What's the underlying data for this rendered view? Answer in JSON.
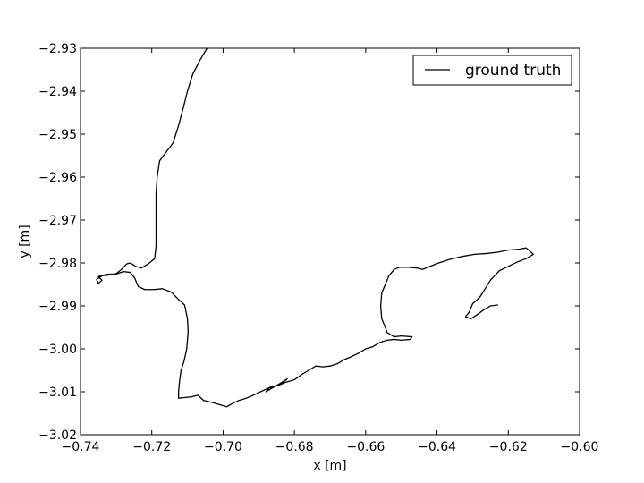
{
  "chart_data": {
    "type": "line",
    "title": "",
    "xlabel": "x [m]",
    "ylabel": "y [m]",
    "xlim": [
      -0.74,
      -0.6
    ],
    "ylim": [
      -3.02,
      -2.93
    ],
    "grid": false,
    "legend_position": "top-right",
    "xticks": [
      -0.74,
      -0.72,
      -0.7,
      -0.68,
      -0.66,
      -0.64,
      -0.62,
      -0.6
    ],
    "xtick_labels": [
      "−0.74",
      "−0.72",
      "−0.70",
      "−0.68",
      "−0.66",
      "−0.64",
      "−0.62",
      "−0.60"
    ],
    "yticks": [
      -2.93,
      -2.94,
      -2.95,
      -2.96,
      -2.97,
      -2.98,
      -2.99,
      -3.0,
      -3.01,
      -3.02
    ],
    "ytick_labels": [
      "−2.93",
      "−2.94",
      "−2.95",
      "−2.96",
      "−2.97",
      "−2.98",
      "−2.99",
      "−3.00",
      "−3.01",
      "−3.02"
    ],
    "series": [
      {
        "name": "ground truth",
        "color": "#000000",
        "points": [
          [
            -0.7045,
            -2.93
          ],
          [
            -0.7065,
            -2.9328
          ],
          [
            -0.7085,
            -2.936
          ],
          [
            -0.71,
            -2.94
          ],
          [
            -0.7112,
            -2.944
          ],
          [
            -0.7125,
            -2.948
          ],
          [
            -0.714,
            -2.952
          ],
          [
            -0.716,
            -2.9542
          ],
          [
            -0.7178,
            -2.9562
          ],
          [
            -0.7185,
            -2.96
          ],
          [
            -0.7188,
            -2.964
          ],
          [
            -0.7188,
            -2.97
          ],
          [
            -0.7188,
            -2.976
          ],
          [
            -0.7192,
            -2.979
          ],
          [
            -0.721,
            -2.9802
          ],
          [
            -0.723,
            -2.9812
          ],
          [
            -0.7245,
            -2.9808
          ],
          [
            -0.726,
            -2.98
          ],
          [
            -0.727,
            -2.9802
          ],
          [
            -0.7285,
            -2.9815
          ],
          [
            -0.73,
            -2.9825
          ],
          [
            -0.732,
            -2.9828
          ],
          [
            -0.734,
            -2.983
          ],
          [
            -0.7355,
            -2.9838
          ],
          [
            -0.735,
            -2.9848
          ],
          [
            -0.734,
            -2.984
          ],
          [
            -0.735,
            -2.9832
          ],
          [
            -0.7325,
            -2.9826
          ],
          [
            -0.73,
            -2.9826
          ],
          [
            -0.728,
            -2.982
          ],
          [
            -0.726,
            -2.9822
          ],
          [
            -0.7248,
            -2.9835
          ],
          [
            -0.7238,
            -2.9855
          ],
          [
            -0.722,
            -2.9862
          ],
          [
            -0.7195,
            -2.9862
          ],
          [
            -0.717,
            -2.986
          ],
          [
            -0.7145,
            -2.9868
          ],
          [
            -0.7125,
            -2.9885
          ],
          [
            -0.7108,
            -2.9898
          ],
          [
            -0.71,
            -2.993
          ],
          [
            -0.7098,
            -2.996
          ],
          [
            -0.7102,
            -3.0
          ],
          [
            -0.711,
            -3.003
          ],
          [
            -0.7118,
            -3.005
          ],
          [
            -0.7122,
            -3.0075
          ],
          [
            -0.7125,
            -3.01
          ],
          [
            -0.7125,
            -3.0115
          ],
          [
            -0.709,
            -3.0112
          ],
          [
            -0.707,
            -3.0108
          ],
          [
            -0.7055,
            -3.012
          ],
          [
            -0.703,
            -3.0125
          ],
          [
            -0.701,
            -3.013
          ],
          [
            -0.699,
            -3.0135
          ],
          [
            -0.6975,
            -3.0128
          ],
          [
            -0.6955,
            -3.012
          ],
          [
            -0.6935,
            -3.0115
          ],
          [
            -0.6915,
            -3.0108
          ],
          [
            -0.6895,
            -3.01
          ],
          [
            -0.6875,
            -3.0092
          ],
          [
            -0.6855,
            -3.0088
          ],
          [
            -0.6835,
            -3.0078
          ],
          [
            -0.682,
            -3.007
          ],
          [
            -0.6835,
            -3.008
          ],
          [
            -0.686,
            -3.009
          ],
          [
            -0.688,
            -3.01
          ],
          [
            -0.687,
            -3.009
          ],
          [
            -0.6845,
            -3.0085
          ],
          [
            -0.6825,
            -3.0078
          ],
          [
            -0.68,
            -3.0072
          ],
          [
            -0.678,
            -3.006
          ],
          [
            -0.676,
            -3.005
          ],
          [
            -0.674,
            -3.004
          ],
          [
            -0.672,
            -3.0042
          ],
          [
            -0.67,
            -3.004
          ],
          [
            -0.668,
            -3.0035
          ],
          [
            -0.666,
            -3.0025
          ],
          [
            -0.664,
            -3.0018
          ],
          [
            -0.662,
            -3.001
          ],
          [
            -0.66,
            -3.0
          ],
          [
            -0.658,
            -2.9995
          ],
          [
            -0.656,
            -2.9985
          ],
          [
            -0.654,
            -2.998
          ],
          [
            -0.652,
            -2.9978
          ],
          [
            -0.65,
            -2.998
          ],
          [
            -0.6475,
            -2.9978
          ],
          [
            -0.647,
            -2.9972
          ],
          [
            -0.65,
            -2.997
          ],
          [
            -0.652,
            -2.9972
          ],
          [
            -0.654,
            -2.9962
          ],
          [
            -0.6545,
            -2.995
          ],
          [
            -0.6555,
            -2.993
          ],
          [
            -0.6558,
            -2.99
          ],
          [
            -0.6555,
            -2.987
          ],
          [
            -0.6545,
            -2.985
          ],
          [
            -0.6535,
            -2.983
          ],
          [
            -0.652,
            -2.9815
          ],
          [
            -0.6505,
            -2.981
          ],
          [
            -0.648,
            -2.981
          ],
          [
            -0.6455,
            -2.9812
          ],
          [
            -0.644,
            -2.9815
          ],
          [
            -0.642,
            -2.9808
          ],
          [
            -0.6395,
            -2.98
          ],
          [
            -0.6365,
            -2.9792
          ],
          [
            -0.633,
            -2.9785
          ],
          [
            -0.6295,
            -2.978
          ],
          [
            -0.626,
            -2.9778
          ],
          [
            -0.623,
            -2.9775
          ],
          [
            -0.62,
            -2.977
          ],
          [
            -0.617,
            -2.9768
          ],
          [
            -0.615,
            -2.9765
          ],
          [
            -0.614,
            -2.9772
          ],
          [
            -0.613,
            -2.978
          ],
          [
            -0.615,
            -2.979
          ],
          [
            -0.6175,
            -2.9798
          ],
          [
            -0.62,
            -2.9808
          ],
          [
            -0.6225,
            -2.9818
          ],
          [
            -0.625,
            -2.984
          ],
          [
            -0.6265,
            -2.986
          ],
          [
            -0.628,
            -2.988
          ],
          [
            -0.63,
            -2.9895
          ],
          [
            -0.631,
            -2.9915
          ],
          [
            -0.632,
            -2.9925
          ],
          [
            -0.6305,
            -2.993
          ],
          [
            -0.629,
            -2.9922
          ],
          [
            -0.627,
            -2.991
          ],
          [
            -0.625,
            -2.99
          ],
          [
            -0.623,
            -2.9898
          ]
        ]
      }
    ]
  }
}
